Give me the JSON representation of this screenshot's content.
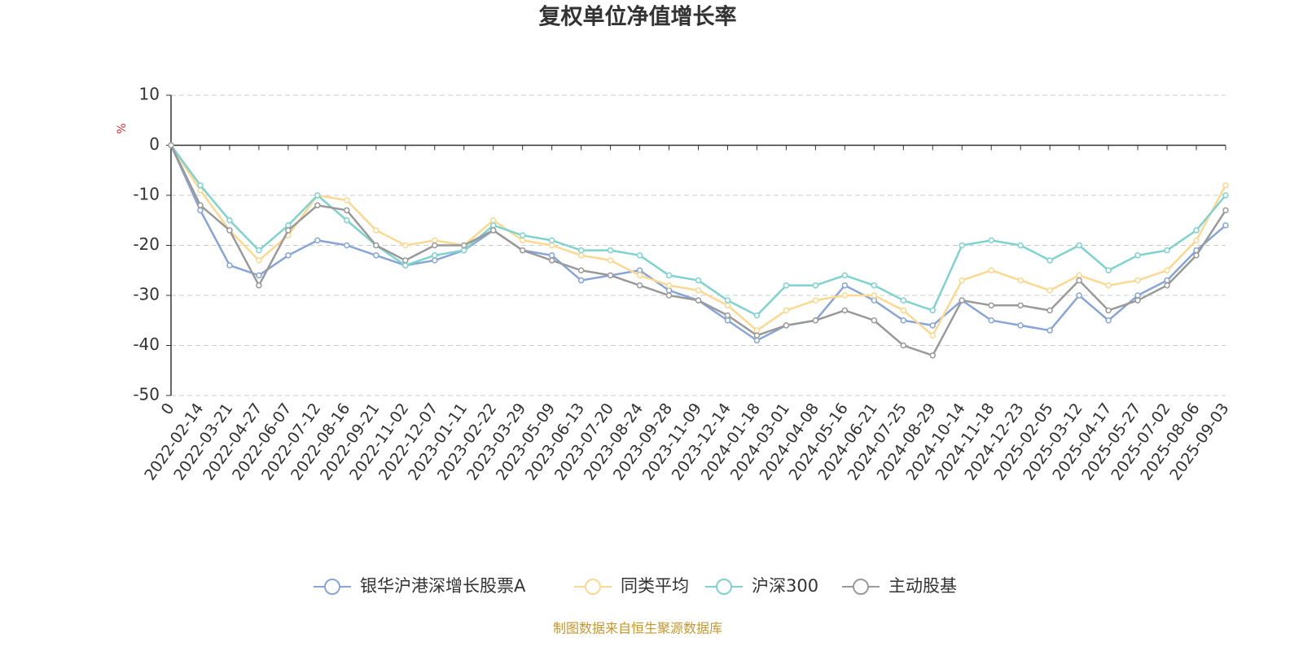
{
  "chart_data": {
    "type": "line",
    "title": "复权单位净值增长率",
    "y_label": "%",
    "source": "制图数据来自恒生聚源数据库",
    "categories": [
      "0",
      "2022-02-14",
      "2022-03-21",
      "2022-04-27",
      "2022-06-07",
      "2022-07-12",
      "2022-08-16",
      "2022-09-21",
      "2022-11-02",
      "2022-12-07",
      "2023-01-11",
      "2023-02-22",
      "2023-03-29",
      "2023-05-09",
      "2023-06-13",
      "2023-07-20",
      "2023-08-24",
      "2023-09-28",
      "2023-11-09",
      "2023-12-14",
      "2024-01-18",
      "2024-03-01",
      "2024-04-08",
      "2024-05-16",
      "2024-06-21",
      "2024-07-25",
      "2024-08-29",
      "2024-10-14",
      "2024-11-18",
      "2024-12-23",
      "2025-02-05",
      "2025-03-12",
      "2025-04-17",
      "2025-05-27",
      "2025-07-02",
      "2025-08-06",
      "2025-09-03"
    ],
    "series": [
      {
        "name": "银华沪港深增长股票A",
        "color": "#87a5d8",
        "values": [
          0,
          -13,
          -24,
          -26,
          -22,
          -19,
          -20,
          -22,
          -24,
          -23,
          -21,
          -17,
          -21,
          -22,
          -27,
          -26,
          -25,
          -29,
          -31,
          -35,
          -39,
          -36,
          -35,
          -28,
          -31,
          -35,
          -36,
          -31,
          -35,
          -36,
          -37,
          -30,
          -35,
          -30,
          -27,
          -21,
          -16
        ]
      },
      {
        "name": "同类平均",
        "color": "#fcd890",
        "values": [
          0,
          -9,
          -17,
          -23,
          -18,
          -10,
          -11,
          -17,
          -20,
          -19,
          -20,
          -15,
          -19,
          -20,
          -22,
          -23,
          -26,
          -28,
          -29,
          -32,
          -37,
          -33,
          -31,
          -30,
          -30,
          -33,
          -38,
          -27,
          -25,
          -27,
          -29,
          -26,
          -28,
          -27,
          -25,
          -19,
          -8
        ]
      },
      {
        "name": "沪深300",
        "color": "#7fd3cf",
        "values": [
          0,
          -8,
          -15,
          -21,
          -16,
          -10,
          -15,
          -20,
          -24,
          -22,
          -21,
          -16,
          -18,
          -19,
          -21,
          -21,
          -22,
          -26,
          -27,
          -31,
          -34,
          -28,
          -28,
          -26,
          -28,
          -31,
          -33,
          -20,
          -19,
          -20,
          -23,
          -20,
          -25,
          -22,
          -21,
          -17,
          -10
        ]
      },
      {
        "name": "主动股基",
        "color": "#9a9a9a",
        "values": [
          0,
          -12,
          -17,
          -28,
          -17,
          -12,
          -13,
          -20,
          -23,
          -20,
          -20,
          -17,
          -21,
          -23,
          -25,
          -26,
          -28,
          -30,
          -31,
          -34,
          -38,
          -36,
          -35,
          -33,
          -35,
          -40,
          -42,
          -31,
          -32,
          -32,
          -33,
          -27,
          -33,
          -31,
          -28,
          -22,
          -13
        ]
      }
    ],
    "ylim": [
      -50,
      10
    ],
    "yticks": [
      10,
      0,
      -10,
      -20,
      -30,
      -40,
      -50
    ],
    "grid": true,
    "legend": "bottom"
  }
}
